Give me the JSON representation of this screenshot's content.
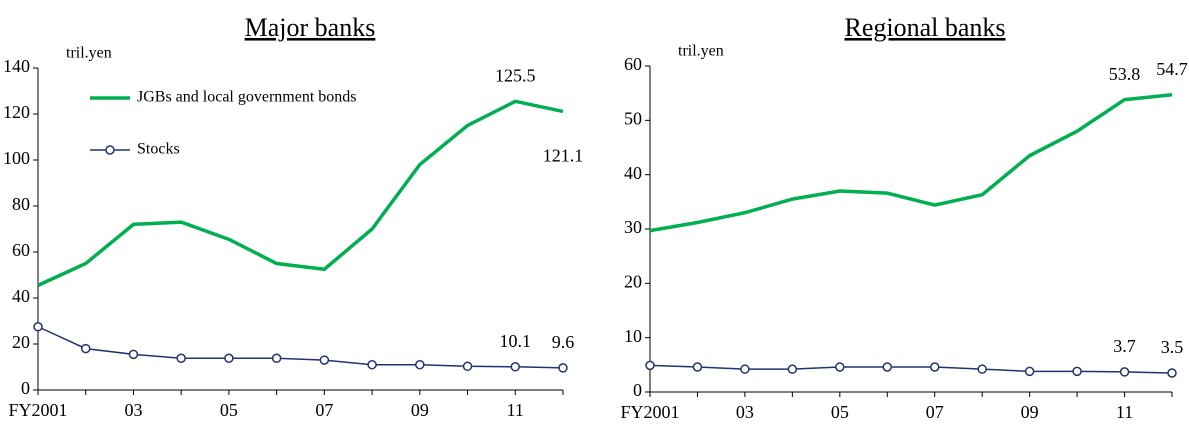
{
  "chart_data": [
    {
      "type": "line",
      "title": "Major banks",
      "y_label": "tril.yen",
      "categories": [
        "FY2001",
        null,
        "03",
        null,
        "05",
        null,
        "07",
        null,
        "09",
        null,
        "11",
        null
      ],
      "ylim": [
        0,
        140
      ],
      "yticks": [
        0,
        20,
        40,
        60,
        80,
        100,
        120,
        140
      ],
      "legend": true,
      "series": [
        {
          "name": "JGBs and local government bonds",
          "color": "#00b050",
          "values": [
            45.5,
            55,
            72,
            73,
            65.5,
            55,
            52.5,
            70,
            98,
            115,
            125.5,
            121.1
          ],
          "value_labels": [
            null,
            null,
            null,
            null,
            null,
            null,
            null,
            null,
            null,
            null,
            "125.5",
            "121.1"
          ]
        },
        {
          "name": "Stocks",
          "color": "#1f3370",
          "marker": "circle",
          "values": [
            27.5,
            18,
            15.5,
            13.8,
            13.8,
            13.8,
            13,
            11,
            11,
            10.3,
            10.1,
            9.6
          ],
          "value_labels": [
            null,
            null,
            null,
            null,
            null,
            null,
            null,
            null,
            null,
            null,
            "10.1",
            "9.6"
          ]
        }
      ]
    },
    {
      "type": "line",
      "title": "Regional banks",
      "y_label": "tril.yen",
      "categories": [
        "FY2001",
        null,
        "03",
        null,
        "05",
        null,
        "07",
        null,
        "09",
        null,
        "11",
        null
      ],
      "ylim": [
        0,
        60
      ],
      "yticks": [
        0,
        10,
        20,
        30,
        40,
        50,
        60
      ],
      "legend": false,
      "series": [
        {
          "color": "#00b050",
          "values": [
            29.7,
            31.2,
            33,
            35.5,
            37,
            36.6,
            34.4,
            36.3,
            43.5,
            48,
            53.8,
            54.7
          ],
          "value_labels": [
            null,
            null,
            null,
            null,
            null,
            null,
            null,
            null,
            null,
            null,
            "53.8",
            "54.7"
          ]
        },
        {
          "color": "#1f3370",
          "marker": "circle",
          "values": [
            4.9,
            4.6,
            4.2,
            4.2,
            4.6,
            4.6,
            4.6,
            4.2,
            3.8,
            3.8,
            3.7,
            3.5
          ],
          "value_labels": [
            null,
            null,
            null,
            null,
            null,
            null,
            null,
            null,
            null,
            null,
            "3.7",
            "3.5"
          ]
        }
      ]
    }
  ]
}
